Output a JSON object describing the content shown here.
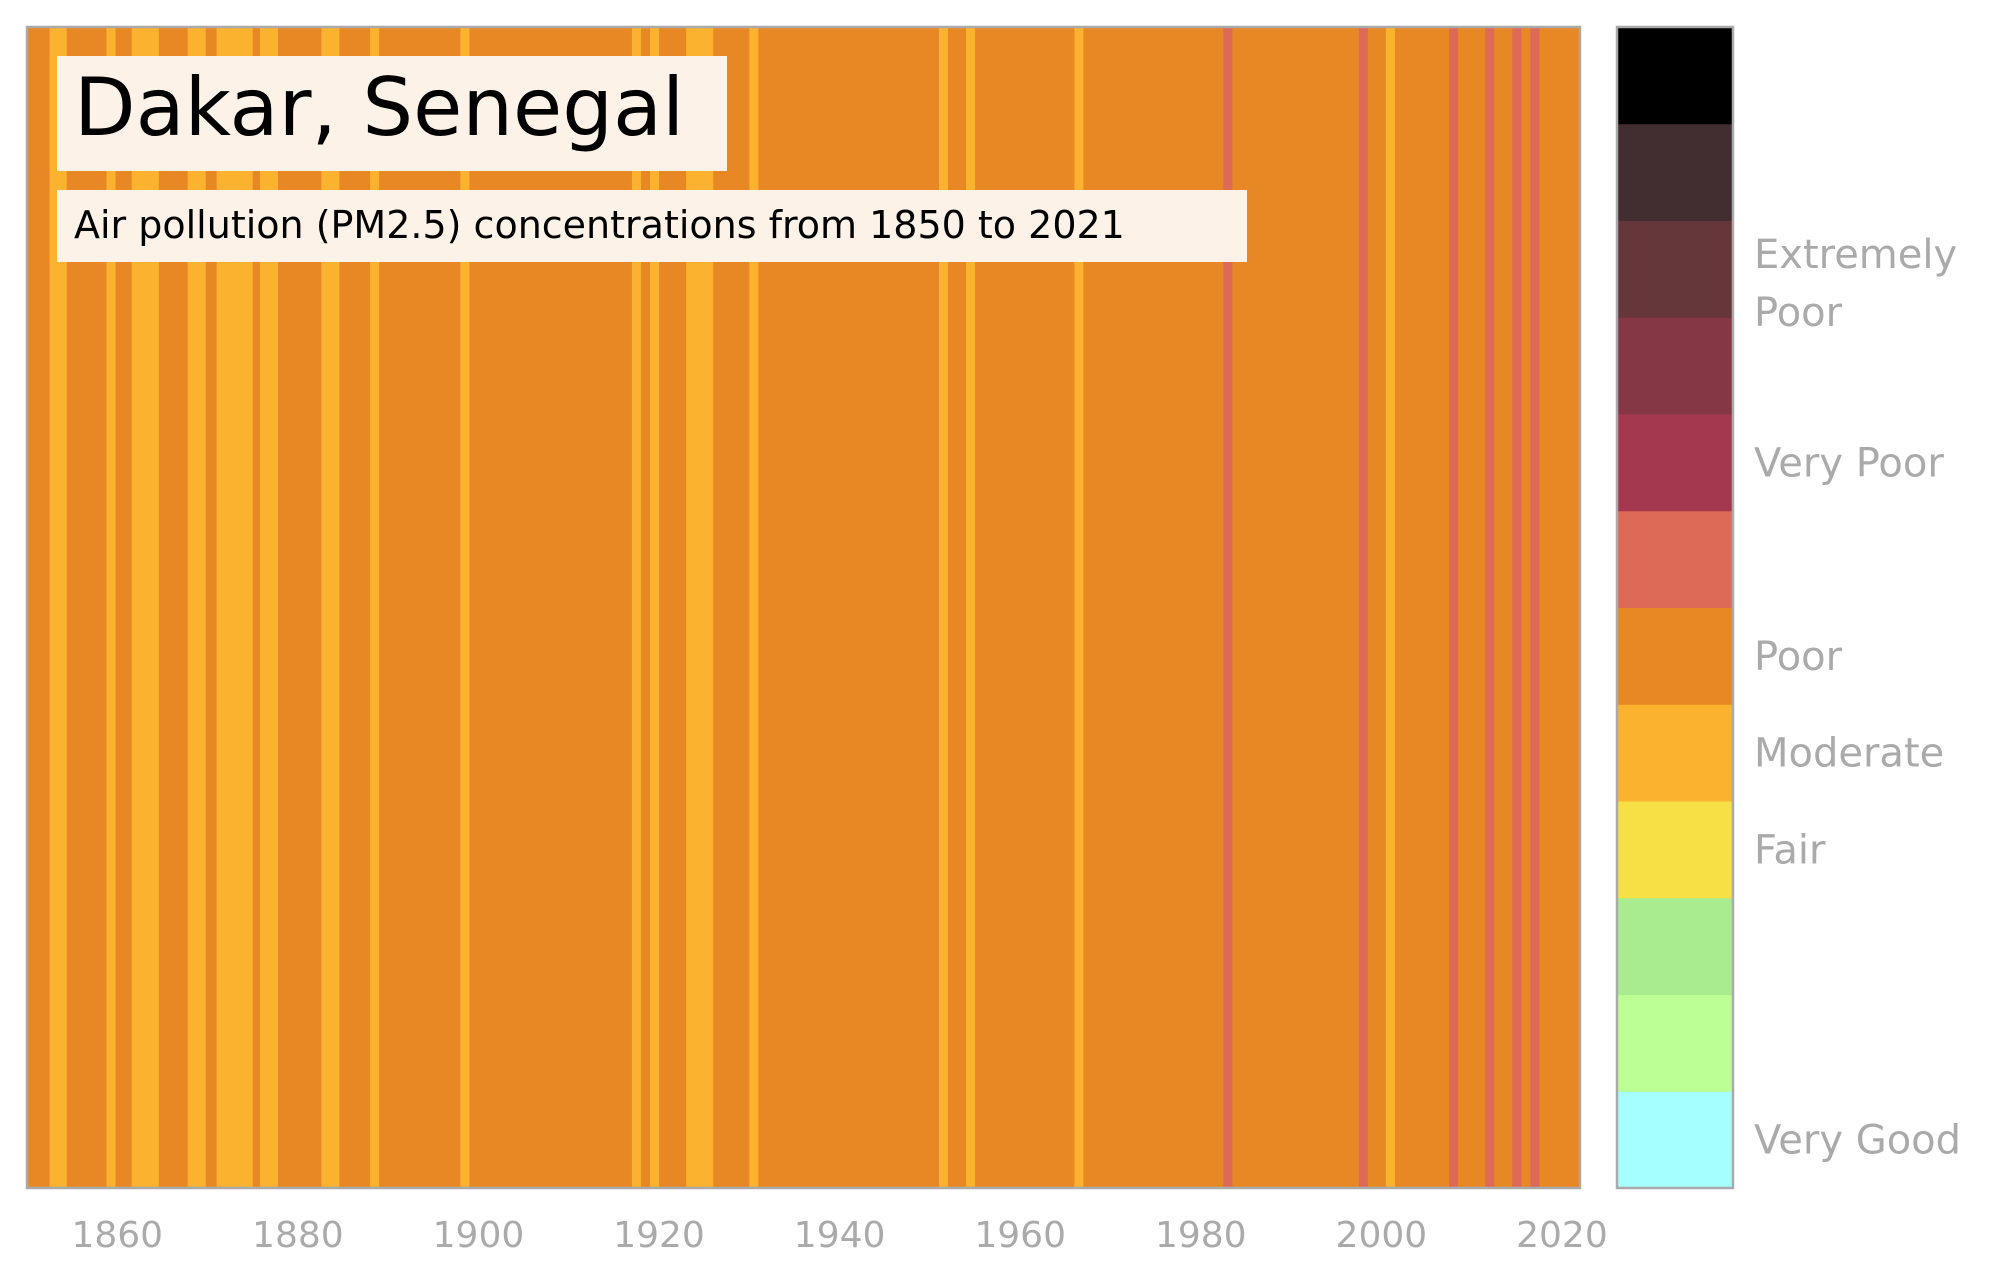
{
  "chart_data": {
    "type": "heatmap",
    "title": "Dakar, Senegal",
    "subtitle": "Air pollution (PM2.5) concentrations from 1850 to 2021",
    "x_range": [
      1850,
      2022
    ],
    "x_ticks": [
      "1860",
      "1880",
      "1900",
      "1920",
      "1940",
      "1960",
      "1980",
      "2000",
      "2020"
    ],
    "base_category": "poor",
    "stripes": [
      {
        "start": 1852.5,
        "end": 1854.4,
        "category": "moderate"
      },
      {
        "start": 1858.8,
        "end": 1859.8,
        "category": "moderate"
      },
      {
        "start": 1861.6,
        "end": 1864.6,
        "category": "moderate"
      },
      {
        "start": 1867.8,
        "end": 1869.8,
        "category": "moderate"
      },
      {
        "start": 1871.0,
        "end": 1875.0,
        "category": "moderate"
      },
      {
        "start": 1875.8,
        "end": 1877.8,
        "category": "moderate"
      },
      {
        "start": 1882.6,
        "end": 1884.6,
        "category": "moderate"
      },
      {
        "start": 1888.0,
        "end": 1889.0,
        "category": "moderate"
      },
      {
        "start": 1898.0,
        "end": 1899.0,
        "category": "moderate"
      },
      {
        "start": 1917.0,
        "end": 1918.0,
        "category": "moderate"
      },
      {
        "start": 1919.0,
        "end": 1920.0,
        "category": "moderate"
      },
      {
        "start": 1923.0,
        "end": 1926.0,
        "category": "moderate"
      },
      {
        "start": 1930.0,
        "end": 1931.0,
        "category": "moderate"
      },
      {
        "start": 1951.0,
        "end": 1952.0,
        "category": "moderate"
      },
      {
        "start": 1954.0,
        "end": 1955.0,
        "category": "moderate"
      },
      {
        "start": 1966.0,
        "end": 1967.0,
        "category": "moderate"
      },
      {
        "start": 1982.5,
        "end": 1983.5,
        "category": "very_poor_low"
      },
      {
        "start": 1997.5,
        "end": 1998.5,
        "category": "very_poor_low"
      },
      {
        "start": 2000.5,
        "end": 2001.5,
        "category": "moderate"
      },
      {
        "start": 2007.5,
        "end": 2008.5,
        "category": "very_poor_low"
      },
      {
        "start": 2011.5,
        "end": 2012.5,
        "category": "very_poor_low"
      },
      {
        "start": 2014.5,
        "end": 2015.5,
        "category": "very_poor_low"
      },
      {
        "start": 2016.5,
        "end": 2017.5,
        "category": "very_poor_low"
      }
    ],
    "palette": {
      "very_good_low": "#a5ffff",
      "very_good_high": "#bcff94",
      "good": "#a8ec8f",
      "fair": "#f6e045",
      "moderate": "#fbb22e",
      "poor": "#e88825",
      "very_poor_low": "#dd6957",
      "very_poor_high": "#a4384f",
      "extremely_poor_low": "#853745",
      "extremely_poor_mid": "#66373a",
      "extremely_poor_high": "#422d30",
      "max": "#000000"
    },
    "legend": {
      "scale_bottom_to_top": [
        "very_good_low",
        "very_good_high",
        "good",
        "fair",
        "moderate",
        "poor",
        "very_poor_low",
        "very_poor_high",
        "extremely_poor_low",
        "extremely_poor_mid",
        "extremely_poor_high",
        "max"
      ],
      "labels": [
        {
          "text": "Very Good",
          "level": 0
        },
        {
          "text": "Fair",
          "level": 3
        },
        {
          "text": "Moderate",
          "level": 4
        },
        {
          "text": "Poor",
          "level": 5
        },
        {
          "text": "Very Poor",
          "level": 7
        },
        {
          "text": "Extremely Poor",
          "level": 9
        }
      ]
    },
    "frame_color": "#aaaaaa",
    "grid": false
  }
}
